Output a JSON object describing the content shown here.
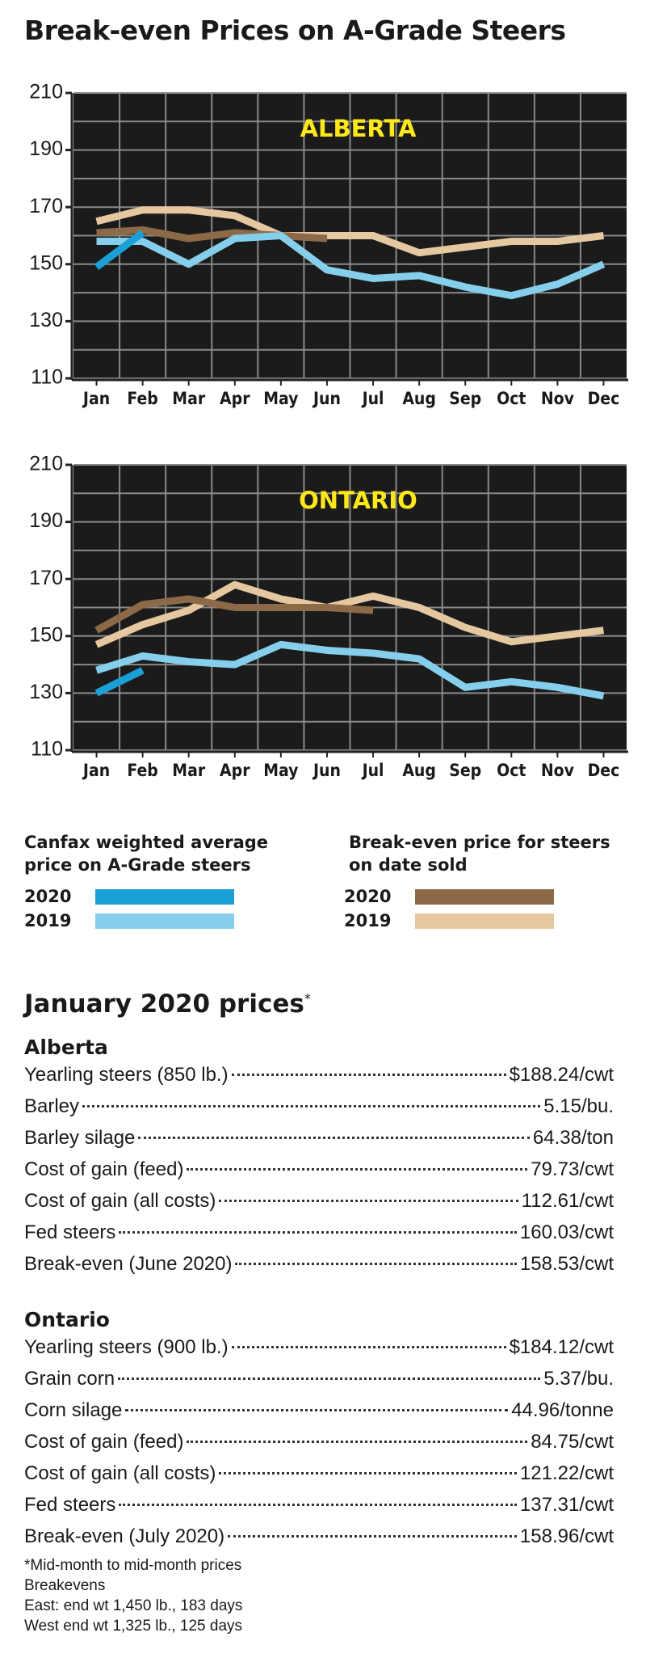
{
  "title": "Break-even Prices on A-Grade Steers",
  "chart_data": [
    {
      "type": "line",
      "title": "ALBERTA",
      "categories": [
        "Jan",
        "Feb",
        "Mar",
        "Apr",
        "May",
        "Jun",
        "Jul",
        "Aug",
        "Sep",
        "Oct",
        "Nov",
        "Dec"
      ],
      "ylim": [
        110,
        210
      ],
      "yticks": [
        110,
        130,
        150,
        170,
        190,
        210
      ],
      "grid": true,
      "legend_groups": [
        "Canfax weighted average price on A-Grade steers",
        "Break-even price for steers on date sold"
      ],
      "series": [
        {
          "name": "2019",
          "group": 1,
          "color": "#e6c8a0",
          "values": [
            165,
            169,
            169,
            167,
            160,
            160,
            160,
            154,
            156,
            158,
            158,
            160
          ]
        },
        {
          "name": "2020",
          "group": 1,
          "color": "#8c6a48",
          "values": [
            161,
            162,
            159,
            161,
            160,
            159,
            null,
            null,
            null,
            null,
            null,
            null
          ]
        },
        {
          "name": "2019",
          "group": 0,
          "color": "#85cfec",
          "values": [
            158,
            158,
            150,
            159,
            160,
            148,
            145,
            146,
            142,
            139,
            143,
            150
          ]
        },
        {
          "name": "2020",
          "group": 0,
          "color": "#1a9fd6",
          "values": [
            149,
            161,
            null,
            null,
            null,
            null,
            null,
            null,
            null,
            null,
            null,
            null
          ]
        }
      ]
    },
    {
      "type": "line",
      "title": "ONTARIO",
      "categories": [
        "Jan",
        "Feb",
        "Mar",
        "Apr",
        "May",
        "Jun",
        "Jul",
        "Aug",
        "Sep",
        "Oct",
        "Nov",
        "Dec"
      ],
      "ylim": [
        110,
        210
      ],
      "yticks": [
        110,
        130,
        150,
        170,
        190,
        210
      ],
      "grid": true,
      "series": [
        {
          "name": "2019",
          "color": "#e6c8a0",
          "values": [
            147,
            154,
            159,
            168,
            163,
            160,
            164,
            160,
            153,
            148,
            150,
            152
          ]
        },
        {
          "name": "2020",
          "color": "#8c6a48",
          "values": [
            152,
            161,
            163,
            160,
            160,
            160,
            159,
            null,
            null,
            null,
            null,
            null
          ]
        },
        {
          "name": "2019",
          "color": "#85cfec",
          "values": [
            138,
            143,
            141,
            140,
            147,
            145,
            144,
            142,
            132,
            134,
            132,
            129
          ]
        },
        {
          "name": "2020",
          "color": "#1a9fd6",
          "values": [
            130,
            138,
            null,
            null,
            null,
            null,
            null,
            null,
            null,
            null,
            null,
            null
          ]
        }
      ]
    }
  ],
  "prices": {
    "title": "January 2020 prices",
    "title_mark": "*",
    "sections": [
      {
        "name": "Alberta",
        "rows": [
          [
            "Yearling steers (850 lb.)",
            "$188.24/cwt"
          ],
          [
            "Barley",
            "5.15/bu."
          ],
          [
            "Barley silage",
            "64.38/ton"
          ],
          [
            "Cost of gain (feed)",
            "79.73/cwt"
          ],
          [
            "Cost of gain (all costs)",
            "112.61/cwt"
          ],
          [
            "Fed steers",
            "160.03/cwt"
          ],
          [
            "Break-even (June 2020)",
            "158.53/cwt"
          ]
        ]
      },
      {
        "name": "Ontario",
        "rows": [
          [
            "Yearling steers (900 lb.)",
            "$184.12/cwt"
          ],
          [
            "Grain corn",
            "5.37/bu."
          ],
          [
            "Corn silage",
            "44.96/tonne"
          ],
          [
            "Cost of gain (feed)",
            "84.75/cwt"
          ],
          [
            "Cost of gain (all costs)",
            "121.22/cwt"
          ],
          [
            "Fed steers",
            "137.31/cwt"
          ],
          [
            "Break-even (July 2020)",
            "158.96/cwt"
          ]
        ]
      }
    ],
    "notes": [
      "*Mid-month to mid-month prices",
      "Breakevens",
      "East: end wt 1,450 lb., 183 days",
      "West end wt 1,325 lb., 125 days"
    ]
  }
}
